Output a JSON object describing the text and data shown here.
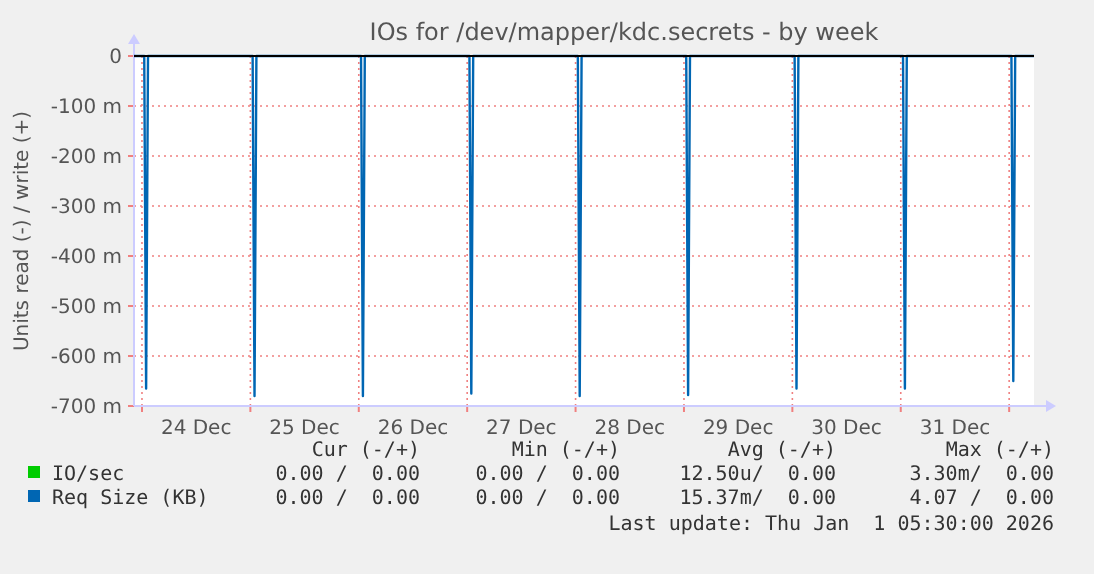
{
  "chart_data": {
    "type": "line",
    "title": "IOs for /dev/mapper/kdc.secrets - by week",
    "ylabel": "Units read (-) / write (+)",
    "xlim": [
      "2025-12-23T22:14",
      "2026-01-01T05:30"
    ],
    "xticks": [
      {
        "value": "2025-12-24T00:00",
        "label": null
      },
      {
        "value": "2025-12-24T12:00",
        "label": "24 Dec"
      },
      {
        "value": "2025-12-25T00:00",
        "label": null
      },
      {
        "value": "2025-12-25T12:00",
        "label": "25 Dec"
      },
      {
        "value": "2025-12-26T00:00",
        "label": null
      },
      {
        "value": "2025-12-26T12:00",
        "label": "26 Dec"
      },
      {
        "value": "2025-12-27T00:00",
        "label": null
      },
      {
        "value": "2025-12-27T12:00",
        "label": "27 Dec"
      },
      {
        "value": "2025-12-28T00:00",
        "label": null
      },
      {
        "value": "2025-12-28T12:00",
        "label": "28 Dec"
      },
      {
        "value": "2025-12-29T00:00",
        "label": null
      },
      {
        "value": "2025-12-29T12:00",
        "label": "29 Dec"
      },
      {
        "value": "2025-12-30T00:00",
        "label": null
      },
      {
        "value": "2025-12-30T12:00",
        "label": "30 Dec"
      },
      {
        "value": "2025-12-31T00:00",
        "label": null
      },
      {
        "value": "2025-12-31T12:00",
        "label": "31 Dec"
      },
      {
        "value": "2026-01-01T00:00",
        "label": null
      }
    ],
    "ylim": [
      -700,
      0
    ],
    "yticks": [
      {
        "value": 0,
        "label": "0"
      },
      {
        "value": -100,
        "label": "-100 m"
      },
      {
        "value": -200,
        "label": "-200 m"
      },
      {
        "value": -300,
        "label": "-300 m"
      },
      {
        "value": -400,
        "label": "-400 m"
      },
      {
        "value": -500,
        "label": "-500 m"
      },
      {
        "value": -600,
        "label": "-600 m"
      },
      {
        "value": -700,
        "label": "-700 m"
      }
    ],
    "grid": true,
    "legend": "bottom left",
    "marker": "none",
    "line_style": "solid",
    "series": [
      {
        "name": "IO/sec",
        "color": "#00cc00"
      },
      {
        "name": "Req Size (KB)",
        "color": "#0066b3",
        "x": [
          "2025-12-23T22:14",
          "2025-12-24T00:30",
          "2025-12-24T00:55",
          "2025-12-24T01:20",
          "2025-12-25T00:30",
          "2025-12-25T00:55",
          "2025-12-25T01:20",
          "2025-12-26T00:30",
          "2025-12-26T00:55",
          "2025-12-26T01:20",
          "2025-12-27T00:30",
          "2025-12-27T00:55",
          "2025-12-27T01:20",
          "2025-12-28T00:30",
          "2025-12-28T00:55",
          "2025-12-28T01:20",
          "2025-12-29T00:30",
          "2025-12-29T00:55",
          "2025-12-29T01:20",
          "2025-12-30T00:30",
          "2025-12-30T00:55",
          "2025-12-30T01:20",
          "2025-12-31T00:30",
          "2025-12-31T00:55",
          "2025-12-31T01:20",
          "2026-01-01T00:30",
          "2026-01-01T00:55",
          "2026-01-01T01:20",
          "2026-01-01T05:30"
        ],
        "values": [
          0,
          0,
          -665,
          0,
          0,
          -680,
          0,
          0,
          -680,
          0,
          0,
          -675,
          0,
          0,
          -680,
          0,
          0,
          -678,
          0,
          0,
          -665,
          0,
          0,
          -665,
          0,
          0,
          -650,
          0,
          0
        ]
      }
    ],
    "annotations": [
      "Cur (-/+)",
      "Min (-/+)",
      "Avg (-/+)",
      "Max (-/+)",
      "0.00 /  0.00",
      "0.00 /  0.00",
      "12.50u/  0.00",
      "3.30m/  0.00",
      "0.00 /  0.00",
      "0.00 /  0.00",
      "15.37m/  0.00",
      "4.07 /  0.00",
      "Last update: Thu Jan  1 05:30:00 2026"
    ]
  }
}
